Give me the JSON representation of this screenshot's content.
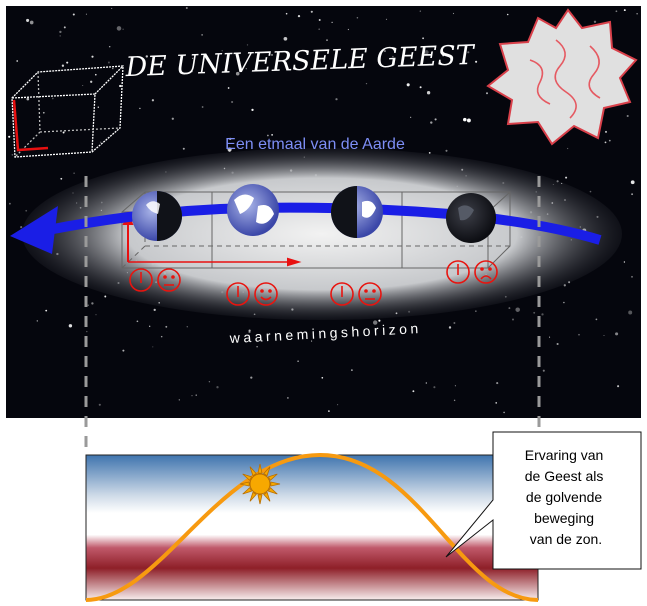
{
  "header": {
    "title": "DE UNIVERSELE GEEST",
    "subtitle": "Een etmaal van de Aarde"
  },
  "horizon_label": "waarnemingshorizon",
  "earth_phases": [
    {
      "name": "earth-night-left",
      "face": "neutral"
    },
    {
      "name": "earth-day",
      "face": "happy"
    },
    {
      "name": "earth-evening",
      "face": "neutral"
    },
    {
      "name": "earth-night",
      "face": "sad"
    }
  ],
  "callout": {
    "lines": [
      "Ervaring van",
      "de Geest als",
      "de golvende",
      "beweging",
      "van de zon."
    ]
  },
  "colors": {
    "space": "#05060d",
    "band": "#c9cbcf",
    "arrow": "#1a1ee6",
    "faces": "#e8140f",
    "title_blue": "#7d8ef5",
    "wave": "#f79a10",
    "sun": "#f7a800",
    "sky_top": "#3a6fa8",
    "sky_mid": "#ffffff",
    "ground": "#8e1f28"
  },
  "icons": [
    "cube-icon",
    "star-shape-icon",
    "clock-icon",
    "smiley-icon",
    "sun-icon"
  ]
}
